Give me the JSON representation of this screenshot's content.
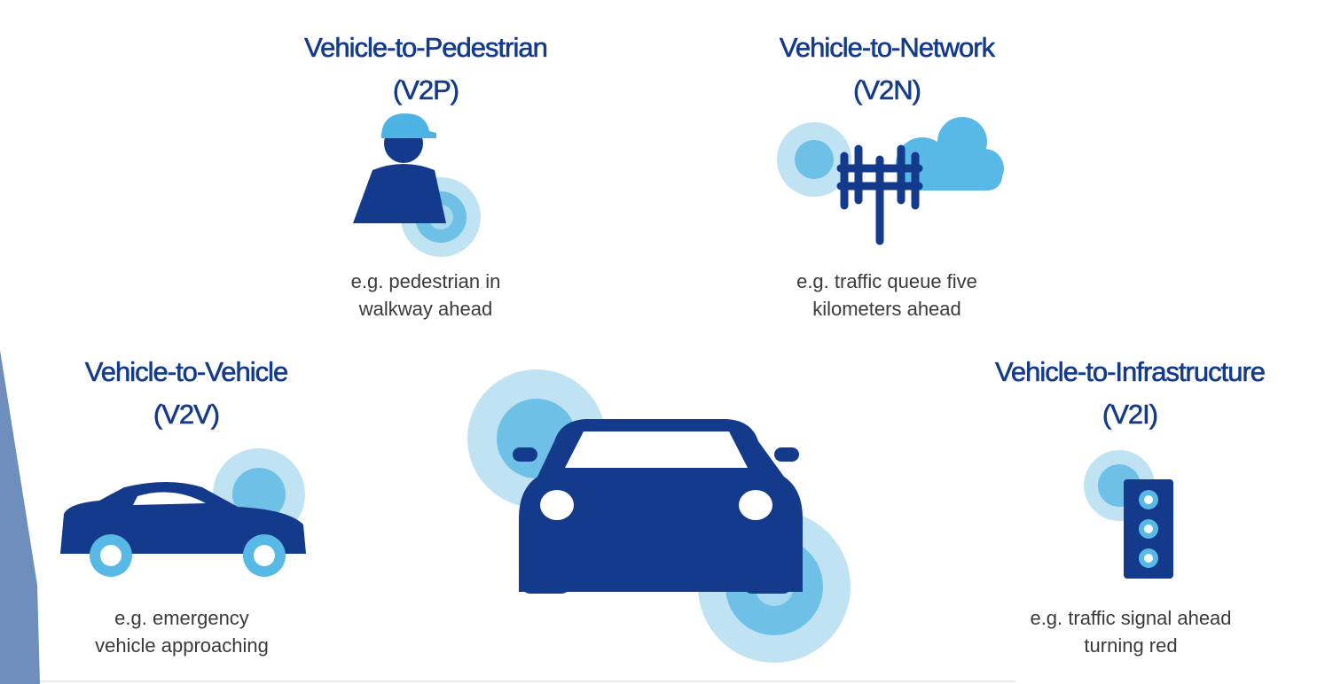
{
  "v2p": {
    "title_line1": "Vehicle-to-Pedestrian",
    "title_line2": "(V2P)",
    "caption_line1": "e.g. pedestrian in",
    "caption_line2": "walkway ahead",
    "icon": "pedestrian-icon"
  },
  "v2n": {
    "title_line1": "Vehicle-to-Network",
    "title_line2": "(V2N)",
    "caption_line1": "e.g. traffic queue five",
    "caption_line2": "kilometers ahead",
    "icon": "cell-tower-cloud-icon"
  },
  "v2v": {
    "title_line1": "Vehicle-to-Vehicle",
    "title_line2": "(V2V)",
    "caption_line1": "e.g. emergency",
    "caption_line2": "vehicle approaching",
    "icon": "car-side-icon"
  },
  "v2i": {
    "title_line1": "Vehicle-to-Infrastructure",
    "title_line2": "(V2I)",
    "caption_line1": "e.g. traffic signal ahead",
    "caption_line2": "turning red",
    "icon": "traffic-light-icon"
  },
  "center": {
    "icon": "car-front-icon"
  },
  "colors": {
    "dark_blue": "#143a8c",
    "mid_blue": "#6ec0e6",
    "light_blue": "#bfe3f3",
    "slate": "#6e8fbd"
  }
}
